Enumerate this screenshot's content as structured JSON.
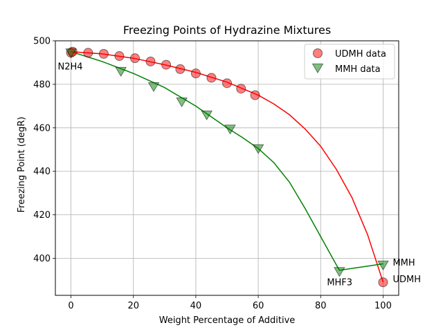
{
  "chart_data": {
    "type": "scatter",
    "title": "Freezing Points of Hydrazine Mixtures",
    "xlabel": "Weight Percentage of Additive",
    "ylabel": "Freezing Point (degR)",
    "xlim": [
      -5,
      105
    ],
    "ylim": [
      383,
      500
    ],
    "xticks": [
      0,
      20,
      40,
      60,
      80,
      100
    ],
    "yticks": [
      400,
      420,
      440,
      460,
      480,
      500
    ],
    "grid": true,
    "legend_position": "top-right",
    "series": [
      {
        "name": "UDMH data",
        "marker": "circle",
        "color": "#ff0000",
        "x": [
          0,
          0.5,
          5.5,
          10.5,
          15.5,
          20.5,
          25.5,
          30.5,
          35,
          40,
          45,
          50,
          54.5,
          59
        ],
        "y": [
          494.5,
          495,
          494.5,
          494,
          493,
          492,
          490.5,
          489,
          487,
          485,
          483,
          480.5,
          478,
          475
        ],
        "extra_points": [
          {
            "x": 100,
            "y": 389
          }
        ]
      },
      {
        "name": "MMH data",
        "marker": "triangle-down",
        "color": "#008000",
        "x": [
          0,
          16,
          26.5,
          35.5,
          43.5,
          51,
          60,
          86,
          100
        ],
        "y": [
          494.5,
          486,
          479,
          472,
          466,
          459.5,
          450.5,
          394,
          397
        ]
      }
    ],
    "fit_curves": [
      {
        "color": "#ff0000",
        "x": [
          0,
          10,
          20,
          30,
          40,
          50,
          60,
          65,
          70,
          75,
          80,
          85,
          90,
          95,
          100
        ],
        "y": [
          495,
          494,
          492,
          489,
          485.5,
          481,
          475,
          471,
          466,
          459.5,
          451.5,
          441,
          428,
          411,
          389
        ]
      },
      {
        "color": "#008000",
        "x": [
          0,
          10,
          20,
          30,
          40,
          50,
          55,
          60,
          65,
          70,
          75,
          80,
          86,
          93,
          100
        ],
        "y": [
          495,
          490.5,
          485,
          478.5,
          470,
          460,
          455.5,
          450.5,
          444,
          435,
          423,
          410,
          394.5,
          396,
          397.5
        ]
      }
    ],
    "annotations": [
      {
        "text": "N2H4",
        "x": 0,
        "y": 494.5
      },
      {
        "text": "MHF3",
        "x": 86,
        "y": 394
      },
      {
        "text": "MMH",
        "x": 100,
        "y": 397
      },
      {
        "text": "UDMH",
        "x": 100,
        "y": 389
      }
    ]
  }
}
